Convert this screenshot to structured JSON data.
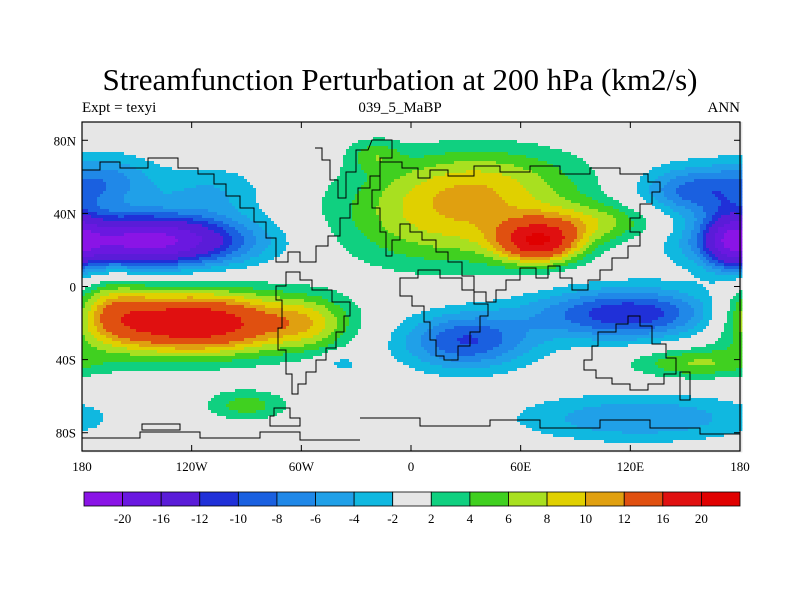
{
  "chart_data": {
    "type": "heatmap",
    "title": "Streamfunction Perturbation at 200 hPa (km2/s)",
    "left_string": "Expt = texyi",
    "center_string": "039_5_MaBP",
    "right_string": "ANN",
    "xlim": [
      -180,
      180
    ],
    "ylim": [
      -90,
      90
    ],
    "x_ticks": [
      {
        "value": -180,
        "label": "180"
      },
      {
        "value": -120,
        "label": "120W"
      },
      {
        "value": -60,
        "label": "60W"
      },
      {
        "value": 0,
        "label": "0"
      },
      {
        "value": 60,
        "label": "60E"
      },
      {
        "value": 120,
        "label": "120E"
      },
      {
        "value": 180,
        "label": "180"
      }
    ],
    "y_ticks": [
      {
        "value": 80,
        "label": "80N"
      },
      {
        "value": 40,
        "label": "40N"
      },
      {
        "value": 0,
        "label": "0"
      },
      {
        "value": -40,
        "label": "40S"
      },
      {
        "value": -80,
        "label": "80S"
      }
    ],
    "contour_levels": [
      -20,
      -16,
      -12,
      -10,
      -8,
      -6,
      -4,
      -2,
      2,
      4,
      6,
      8,
      10,
      12,
      16,
      20
    ],
    "level_labels": [
      "-20",
      "-16",
      "-12",
      "-10",
      "-8",
      "-6",
      "-4",
      "-2",
      "2",
      "4",
      "6",
      "8",
      "10",
      "12",
      "16",
      "20"
    ],
    "colors": [
      "#8a14e6",
      "#6a18e0",
      "#5a1cd8",
      "#2030d8",
      "#1a60e0",
      "#2088e8",
      "#20a0e8",
      "#10b8e0",
      "#e6e6e6",
      "#10d080",
      "#40d020",
      "#a8e020",
      "#e0d000",
      "#e0a010",
      "#e05010",
      "#e01010",
      "#e00000"
    ],
    "features": [
      {
        "lon": -145,
        "lat": 25,
        "amp": -22,
        "sx": 38,
        "sy": 10
      },
      {
        "lon": -165,
        "lat": 58,
        "amp": -6,
        "sx": 18,
        "sy": 10
      },
      {
        "lon": -110,
        "lat": 52,
        "amp": -4,
        "sx": 22,
        "sy": 10
      },
      {
        "lon": -120,
        "lat": -20,
        "amp": 20,
        "sx": 40,
        "sy": 12
      },
      {
        "lon": -165,
        "lat": -12,
        "amp": 6,
        "sx": 15,
        "sy": 12
      },
      {
        "lon": -55,
        "lat": -20,
        "amp": 5,
        "sx": 16,
        "sy": 10
      },
      {
        "lon": -90,
        "lat": -65,
        "amp": 5,
        "sx": 16,
        "sy": 6
      },
      {
        "lon": -38,
        "lat": -42,
        "amp": -3,
        "sx": 8,
        "sy": 4
      },
      {
        "lon": 20,
        "lat": 36,
        "amp": 8,
        "sx": 42,
        "sy": 18
      },
      {
        "lon": 70,
        "lat": 24,
        "amp": 16,
        "sx": 16,
        "sy": 8
      },
      {
        "lon": 40,
        "lat": 58,
        "amp": 6,
        "sx": 40,
        "sy": 14
      },
      {
        "lon": 100,
        "lat": 35,
        "amp": 6,
        "sx": 30,
        "sy": 8
      },
      {
        "lon": -20,
        "lat": 72,
        "amp": 4,
        "sx": 10,
        "sy": 6
      },
      {
        "lon": 155,
        "lat": 52,
        "amp": -9,
        "sx": 22,
        "sy": 10
      },
      {
        "lon": 175,
        "lat": 25,
        "amp": -10,
        "sx": 10,
        "sy": 12
      },
      {
        "lon": 30,
        "lat": -30,
        "amp": -10,
        "sx": 25,
        "sy": 11
      },
      {
        "lon": 120,
        "lat": -15,
        "amp": -12,
        "sx": 38,
        "sy": 10
      },
      {
        "lon": 125,
        "lat": -72,
        "amp": -6,
        "sx": 45,
        "sy": 9
      },
      {
        "lon": 155,
        "lat": -42,
        "amp": 6,
        "sx": 25,
        "sy": 6
      }
    ]
  }
}
